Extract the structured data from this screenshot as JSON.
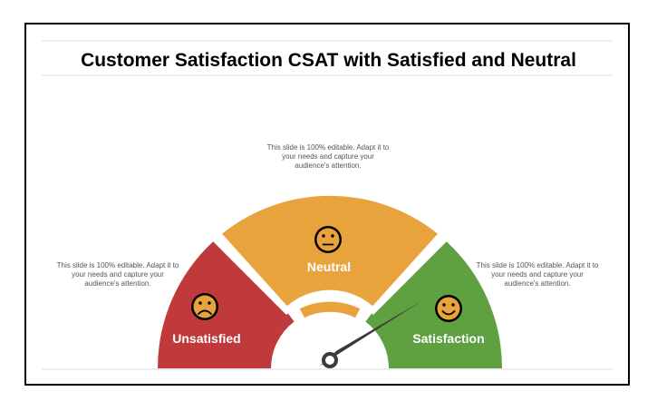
{
  "slide": {
    "title": "Customer Satisfaction CSAT with Satisfied and Neutral"
  },
  "notes": {
    "top": "This slide is 100% editable. Adapt it to your needs and capture your audience's attention.",
    "left": "This slide is 100% editable. Adapt it to your needs and capture your audience's attention.",
    "right": "This slide is 100% editable. Adapt it to your needs and capture your audience's attention."
  },
  "segments": [
    {
      "label": "Unsatisfied",
      "color": "#c0393b",
      "icon": "sad-face-icon"
    },
    {
      "label": "Neutral",
      "color": "#e8a33d",
      "icon": "neutral-face-icon"
    },
    {
      "label": "Satisfaction",
      "color": "#5fa041",
      "icon": "happy-face-icon"
    }
  ],
  "needle": {
    "color": "#3b3b3b",
    "points_to": "Satisfaction"
  },
  "face_fill": "#e8a33d"
}
